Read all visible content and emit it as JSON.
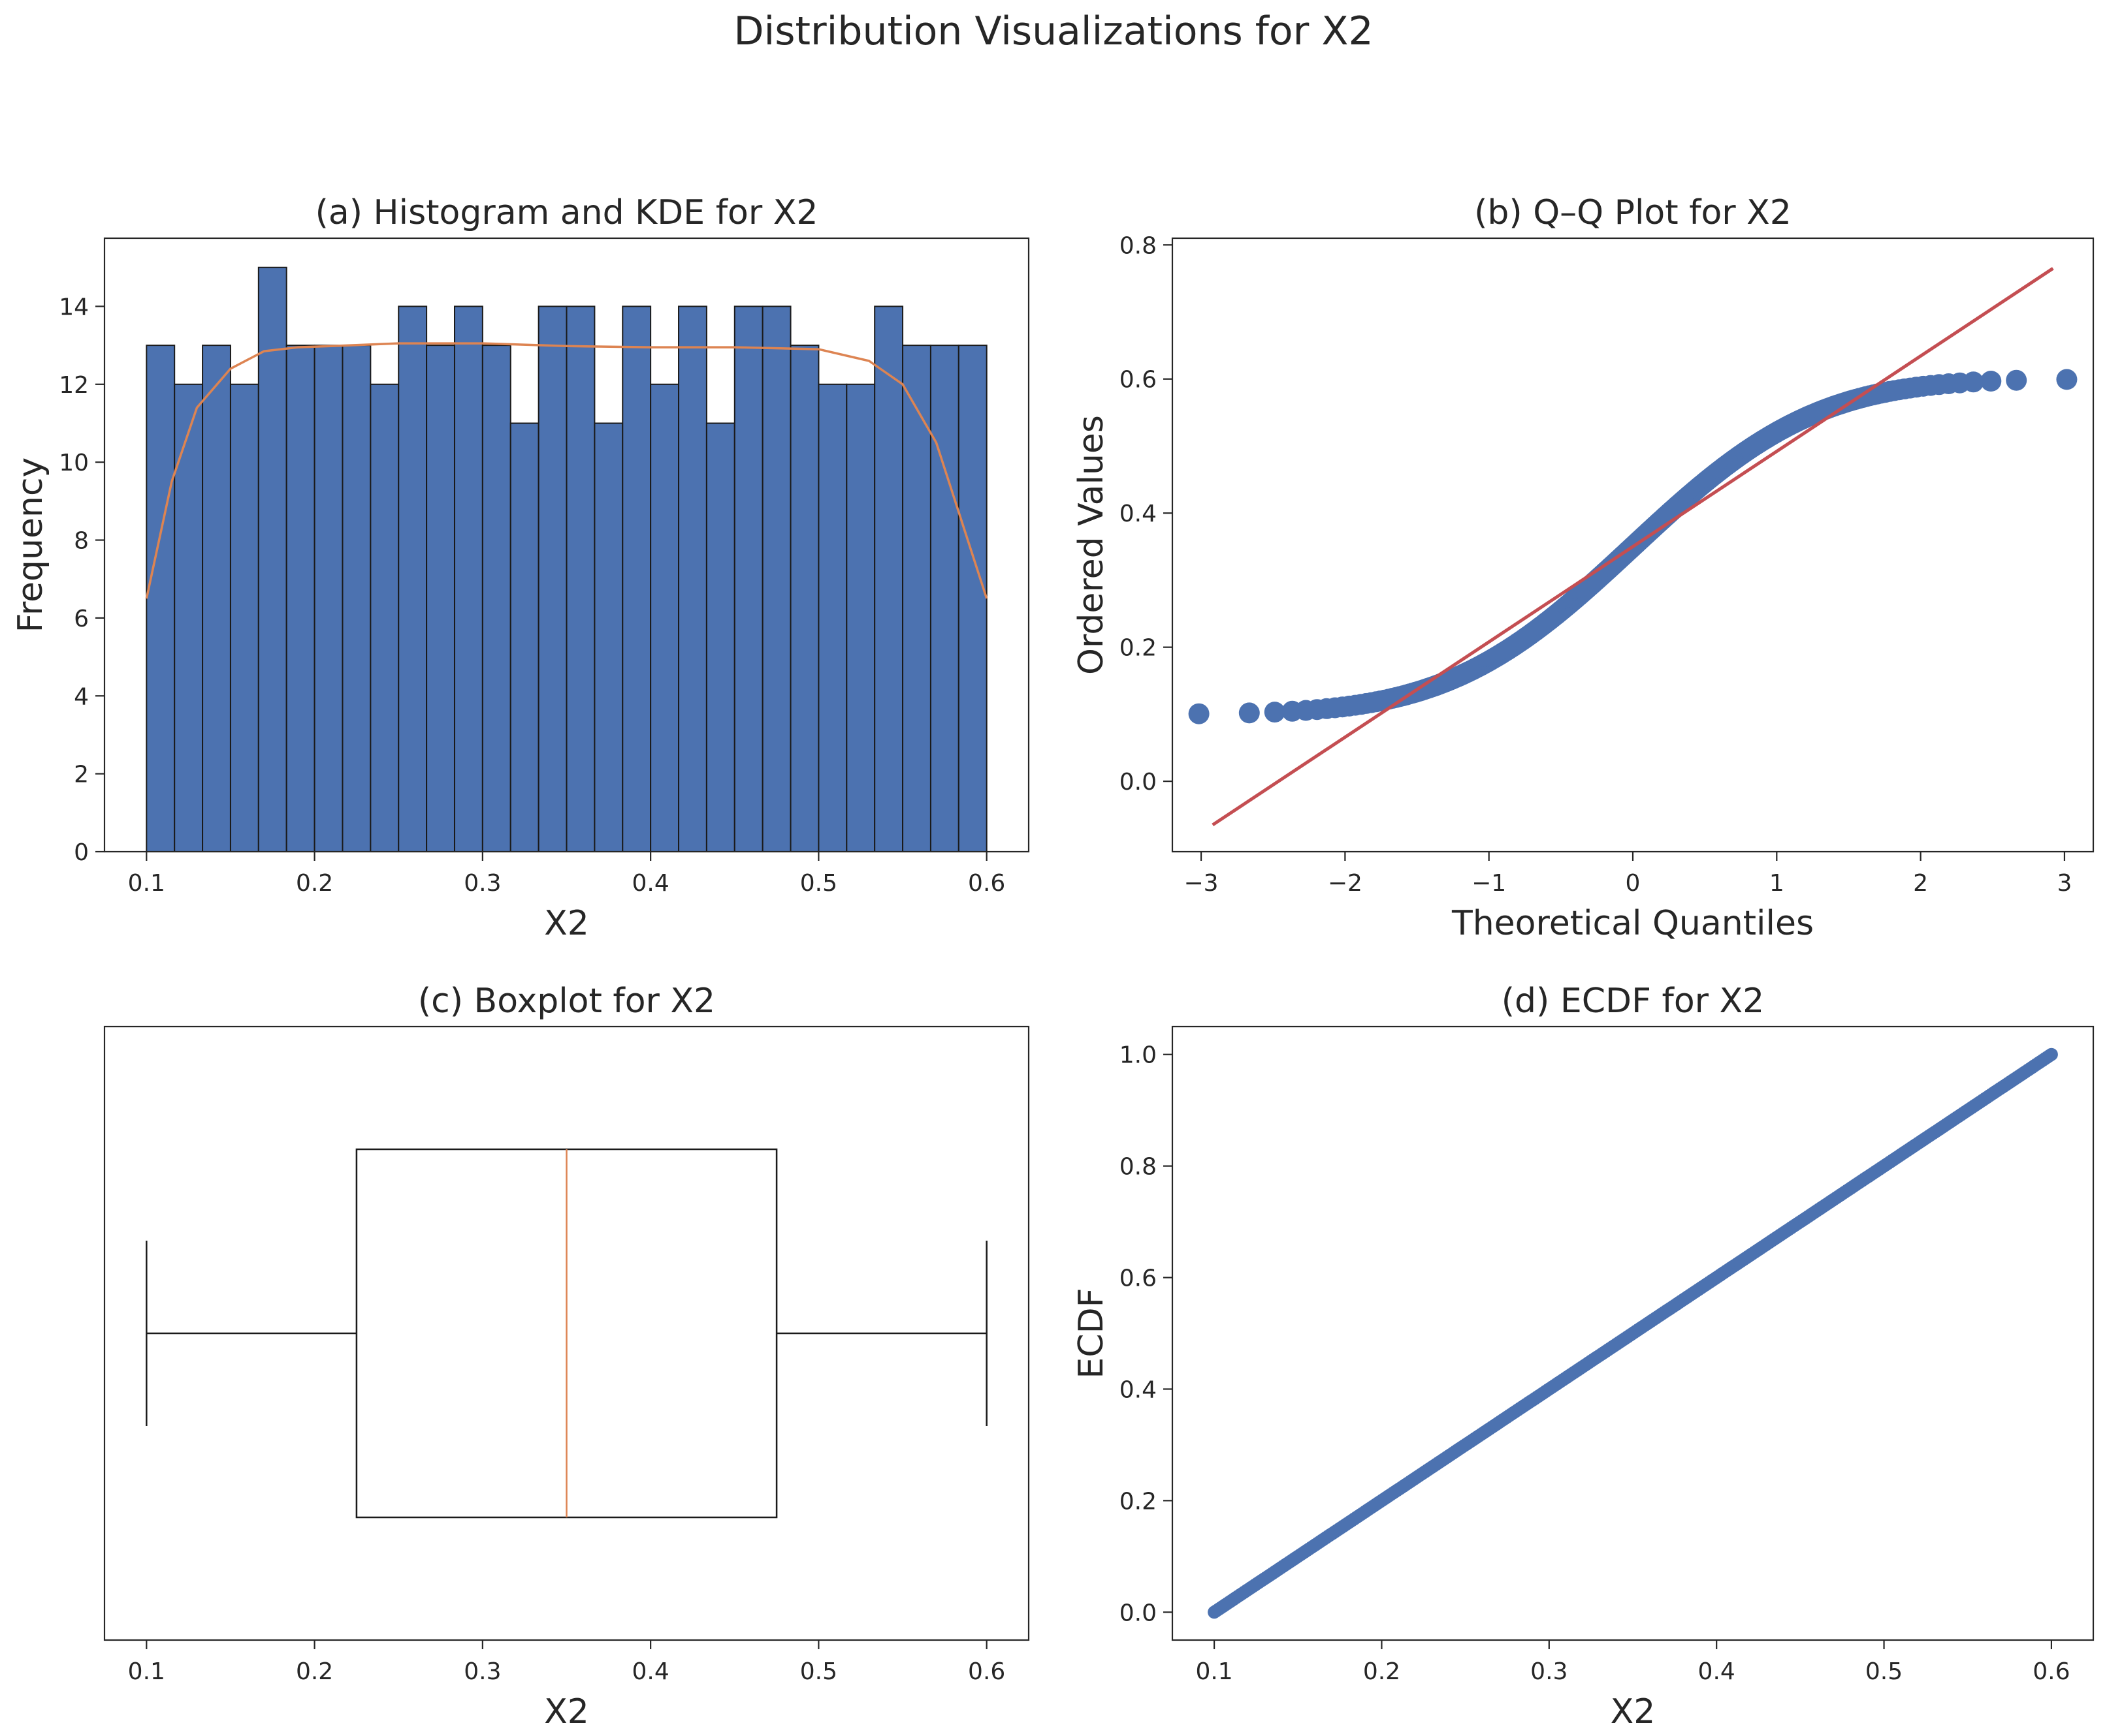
{
  "figure": {
    "title": "Distribution Visualizations for X2"
  },
  "colors": {
    "bar": "#4C72B0",
    "kde": "#DD8452",
    "qq_line": "#C44E52",
    "median": "#DD8452",
    "axis": "#262626",
    "edge": "#1a1a1a"
  },
  "chart_data": [
    {
      "id": "hist",
      "type": "bar",
      "title": "(a) Histogram and KDE for X2",
      "xlabel": "X2",
      "ylabel": "Frequency",
      "xlim": [
        0.075,
        0.625
      ],
      "ylim": [
        0,
        15.75
      ],
      "xticks": [
        0.1,
        0.2,
        0.3,
        0.4,
        0.5,
        0.6
      ],
      "xticklabels": [
        "0.1",
        "0.2",
        "0.3",
        "0.4",
        "0.5",
        "0.6"
      ],
      "yticks": [
        0,
        2,
        4,
        6,
        8,
        10,
        12,
        14
      ],
      "yticklabels": [
        "0",
        "2",
        "4",
        "6",
        "8",
        "10",
        "12",
        "14"
      ],
      "bin_start": 0.1,
      "bin_width": 0.016667,
      "counts": [
        13,
        12,
        13,
        12,
        15,
        13,
        13,
        13,
        12,
        14,
        13,
        14,
        13,
        11,
        14,
        14,
        11,
        14,
        12,
        14,
        11,
        14,
        14,
        13,
        12,
        12,
        14,
        13,
        13,
        13
      ],
      "kde": {
        "x": [
          0.1,
          0.115,
          0.13,
          0.15,
          0.17,
          0.19,
          0.21,
          0.25,
          0.3,
          0.35,
          0.4,
          0.45,
          0.5,
          0.53,
          0.55,
          0.57,
          0.585,
          0.6
        ],
        "y": [
          6.5,
          9.5,
          11.4,
          12.4,
          12.85,
          12.95,
          12.98,
          13.05,
          13.05,
          12.98,
          12.95,
          12.95,
          12.9,
          12.6,
          12.0,
          10.5,
          8.5,
          6.5
        ]
      }
    },
    {
      "id": "qq",
      "type": "scatter",
      "title": "(b) Q–Q Plot for X2",
      "xlabel": "Theoretical Quantiles",
      "ylabel": "Ordered Values",
      "xlim": [
        -3.2,
        3.2
      ],
      "ylim": [
        -0.105,
        0.81
      ],
      "xticks": [
        -3,
        -2,
        -1,
        0,
        1,
        2,
        3
      ],
      "xticklabels": [
        "−3",
        "−2",
        "−1",
        "0",
        "1",
        "2",
        "3"
      ],
      "yticks": [
        0.0,
        0.2,
        0.4,
        0.6,
        0.8
      ],
      "yticklabels": [
        "0.0",
        "0.2",
        "0.4",
        "0.6",
        "0.8"
      ],
      "n": 390,
      "data_min": 0.1,
      "data_max": 0.6,
      "fit_line": {
        "x": [
          -2.92,
          2.92
        ],
        "y": [
          -0.065,
          0.765
        ]
      }
    },
    {
      "id": "box",
      "type": "box",
      "title": "(c) Boxplot for X2",
      "xlabel": "X2",
      "xlim": [
        0.075,
        0.625
      ],
      "xticks": [
        0.1,
        0.2,
        0.3,
        0.4,
        0.5,
        0.6
      ],
      "xticklabels": [
        "0.1",
        "0.2",
        "0.3",
        "0.4",
        "0.5",
        "0.6"
      ],
      "whisker_low": 0.1,
      "q1": 0.225,
      "median": 0.35,
      "q3": 0.475,
      "whisker_high": 0.6
    },
    {
      "id": "ecdf",
      "type": "scatter",
      "title": "(d) ECDF for X2",
      "xlabel": "X2",
      "ylabel": "ECDF",
      "xlim": [
        0.075,
        0.625
      ],
      "ylim": [
        -0.05,
        1.05
      ],
      "xticks": [
        0.1,
        0.2,
        0.3,
        0.4,
        0.5,
        0.6
      ],
      "xticklabels": [
        "0.1",
        "0.2",
        "0.3",
        "0.4",
        "0.5",
        "0.6"
      ],
      "yticks": [
        0.0,
        0.2,
        0.4,
        0.6,
        0.8,
        1.0
      ],
      "yticklabels": [
        "0.0",
        "0.2",
        "0.4",
        "0.6",
        "0.8",
        "1.0"
      ],
      "n": 390,
      "x_range": [
        0.1,
        0.6
      ],
      "y_range": [
        0.0,
        1.0
      ]
    }
  ]
}
